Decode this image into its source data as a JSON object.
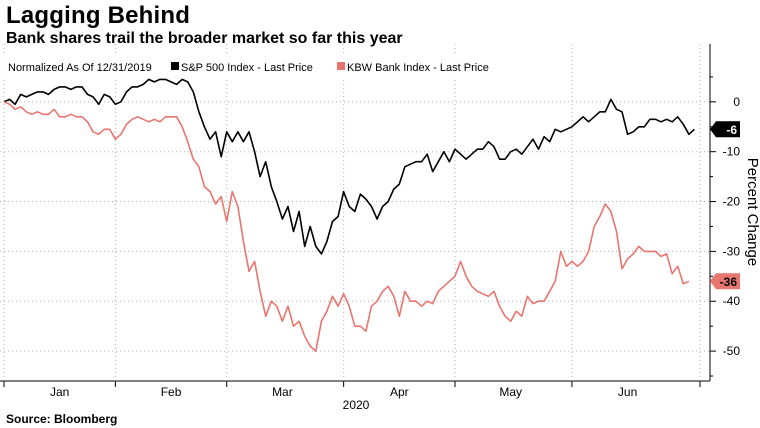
{
  "header": {
    "title": "Lagging Behind",
    "subtitle": "Bank shares trail the broader market so far this year"
  },
  "footer": {
    "source": "Source: Bloomberg"
  },
  "legend": {
    "note": "Normalized As Of 12/31/2019",
    "items": [
      {
        "label": "S&P 500 Index - Last Price",
        "color": "#000000"
      },
      {
        "label": "KBW Bank Index - Last Price",
        "color": "#e8756e"
      }
    ]
  },
  "chart_data": {
    "type": "line",
    "ylabel": "Percent Change",
    "xlabel": "2020",
    "ylim": [
      -56,
      10
    ],
    "yticks": [
      0,
      -10,
      -20,
      -30,
      -40,
      -50
    ],
    "xlim": [
      0,
      125
    ],
    "month_labels": [
      {
        "label": "Jan",
        "x": 10
      },
      {
        "label": "Feb",
        "x": 30
      },
      {
        "label": "Mar",
        "x": 50
      },
      {
        "label": "Apr",
        "x": 71
      },
      {
        "label": "May",
        "x": 91
      },
      {
        "label": "Jun",
        "x": 112
      }
    ],
    "month_boundaries": [
      0,
      20,
      40,
      61,
      81,
      102,
      125
    ],
    "grid": true,
    "legend_position": "top-left",
    "series": [
      {
        "name": "S&P 500 Index - Last Price",
        "color": "#000000",
        "last_label": "-6",
        "points": [
          [
            0,
            0
          ],
          [
            1,
            0.5
          ],
          [
            2,
            -0.5
          ],
          [
            3,
            1.5
          ],
          [
            4,
            1
          ],
          [
            5,
            1.5
          ],
          [
            6,
            2
          ],
          [
            7,
            2
          ],
          [
            8,
            1.5
          ],
          [
            9,
            2.5
          ],
          [
            10,
            3
          ],
          [
            11,
            3
          ],
          [
            12,
            2.5
          ],
          [
            13,
            3
          ],
          [
            14,
            3
          ],
          [
            15,
            1.5
          ],
          [
            16,
            1
          ],
          [
            17,
            -0.5
          ],
          [
            18,
            1.5
          ],
          [
            19,
            1
          ],
          [
            20,
            -0.5
          ],
          [
            21,
            0
          ],
          [
            22,
            2
          ],
          [
            23,
            3
          ],
          [
            24,
            3
          ],
          [
            25,
            3.5
          ],
          [
            26,
            4.5
          ],
          [
            27,
            4
          ],
          [
            28,
            4.5
          ],
          [
            29,
            4.5
          ],
          [
            30,
            4
          ],
          [
            31,
            3.5
          ],
          [
            32,
            4.5
          ],
          [
            33,
            4
          ],
          [
            34,
            2
          ],
          [
            35,
            -2
          ],
          [
            36,
            -5
          ],
          [
            37,
            -7.5
          ],
          [
            38,
            -6
          ],
          [
            39,
            -11
          ],
          [
            40,
            -6
          ],
          [
            41,
            -8
          ],
          [
            42,
            -6
          ],
          [
            43,
            -8
          ],
          [
            44,
            -6
          ],
          [
            45,
            -10
          ],
          [
            46,
            -15
          ],
          [
            47,
            -12
          ],
          [
            48,
            -17
          ],
          [
            49,
            -20
          ],
          [
            50,
            -23.5
          ],
          [
            51,
            -21
          ],
          [
            52,
            -26
          ],
          [
            53,
            -22
          ],
          [
            54,
            -29
          ],
          [
            55,
            -25
          ],
          [
            56,
            -29
          ],
          [
            57,
            -30.5
          ],
          [
            58,
            -28
          ],
          [
            59,
            -24
          ],
          [
            60,
            -23
          ],
          [
            61,
            -18
          ],
          [
            62,
            -21
          ],
          [
            63,
            -22
          ],
          [
            64,
            -18.5
          ],
          [
            65,
            -19.5
          ],
          [
            66,
            -21
          ],
          [
            67,
            -23.5
          ],
          [
            68,
            -21
          ],
          [
            69,
            -20
          ],
          [
            70,
            -17.5
          ],
          [
            71,
            -16.5
          ],
          [
            72,
            -13
          ],
          [
            73,
            -12.5
          ],
          [
            74,
            -12
          ],
          [
            75,
            -12
          ],
          [
            76,
            -10.5
          ],
          [
            77,
            -14
          ],
          [
            78,
            -12
          ],
          [
            79,
            -10
          ],
          [
            80,
            -12
          ],
          [
            81,
            -9.5
          ],
          [
            82,
            -10.5
          ],
          [
            83,
            -11.5
          ],
          [
            84,
            -10.5
          ],
          [
            85,
            -9.5
          ],
          [
            86,
            -9.5
          ],
          [
            87,
            -8
          ],
          [
            88,
            -9
          ],
          [
            89,
            -11.5
          ],
          [
            90,
            -11.5
          ],
          [
            91,
            -10
          ],
          [
            92,
            -9.5
          ],
          [
            93,
            -10.5
          ],
          [
            94,
            -9
          ],
          [
            95,
            -7.5
          ],
          [
            96,
            -9.5
          ],
          [
            97,
            -7
          ],
          [
            98,
            -8
          ],
          [
            99,
            -5.5
          ],
          [
            100,
            -6
          ],
          [
            101,
            -5.5
          ],
          [
            102,
            -5
          ],
          [
            103,
            -4
          ],
          [
            104,
            -3
          ],
          [
            105,
            -4
          ],
          [
            106,
            -3
          ],
          [
            107,
            -2
          ],
          [
            108,
            -2
          ],
          [
            109,
            0.5
          ],
          [
            110,
            -1.5
          ],
          [
            111,
            -2
          ],
          [
            112,
            -6.5
          ],
          [
            113,
            -6
          ],
          [
            114,
            -5
          ],
          [
            115,
            -5
          ],
          [
            116,
            -3.5
          ],
          [
            117,
            -3.5
          ],
          [
            118,
            -4
          ],
          [
            119,
            -3.5
          ],
          [
            120,
            -4
          ],
          [
            121,
            -3
          ],
          [
            122,
            -4.5
          ],
          [
            123,
            -6.5
          ],
          [
            124,
            -5.5
          ]
        ]
      },
      {
        "name": "KBW Bank Index - Last Price",
        "color": "#e8756e",
        "last_label": "-36",
        "points": [
          [
            0,
            0
          ],
          [
            1,
            -0.5
          ],
          [
            2,
            -1.5
          ],
          [
            3,
            -1
          ],
          [
            4,
            -2
          ],
          [
            5,
            -2.5
          ],
          [
            6,
            -2
          ],
          [
            7,
            -2.5
          ],
          [
            8,
            -2.5
          ],
          [
            9,
            -1.5
          ],
          [
            10,
            -3
          ],
          [
            11,
            -3
          ],
          [
            12,
            -2.5
          ],
          [
            13,
            -3
          ],
          [
            14,
            -3
          ],
          [
            15,
            -4
          ],
          [
            16,
            -6
          ],
          [
            17,
            -6.5
          ],
          [
            18,
            -5.5
          ],
          [
            19,
            -5.5
          ],
          [
            20,
            -7.5
          ],
          [
            21,
            -6.5
          ],
          [
            22,
            -4.5
          ],
          [
            23,
            -3.5
          ],
          [
            24,
            -3
          ],
          [
            25,
            -3.5
          ],
          [
            26,
            -4
          ],
          [
            27,
            -3.5
          ],
          [
            28,
            -4
          ],
          [
            29,
            -3
          ],
          [
            30,
            -3
          ],
          [
            31,
            -3
          ],
          [
            32,
            -5
          ],
          [
            33,
            -8
          ],
          [
            34,
            -11.5
          ],
          [
            35,
            -13
          ],
          [
            36,
            -17
          ],
          [
            37,
            -18
          ],
          [
            38,
            -20.5
          ],
          [
            39,
            -19
          ],
          [
            40,
            -24
          ],
          [
            41,
            -18
          ],
          [
            42,
            -21
          ],
          [
            43,
            -28
          ],
          [
            44,
            -34
          ],
          [
            45,
            -32
          ],
          [
            46,
            -38
          ],
          [
            47,
            -43
          ],
          [
            48,
            -40
          ],
          [
            49,
            -41
          ],
          [
            50,
            -44
          ],
          [
            51,
            -41
          ],
          [
            52,
            -45
          ],
          [
            53,
            -44
          ],
          [
            54,
            -47
          ],
          [
            55,
            -49
          ],
          [
            56,
            -50
          ],
          [
            57,
            -44
          ],
          [
            58,
            -42
          ],
          [
            59,
            -39
          ],
          [
            60,
            -41
          ],
          [
            61,
            -38.5
          ],
          [
            62,
            -41
          ],
          [
            63,
            -45
          ],
          [
            64,
            -45
          ],
          [
            65,
            -46
          ],
          [
            66,
            -41
          ],
          [
            67,
            -40
          ],
          [
            68,
            -38
          ],
          [
            69,
            -37
          ],
          [
            70,
            -39
          ],
          [
            71,
            -43
          ],
          [
            72,
            -38
          ],
          [
            73,
            -40
          ],
          [
            74,
            -40
          ],
          [
            75,
            -41
          ],
          [
            76,
            -40
          ],
          [
            77,
            -40.5
          ],
          [
            78,
            -38
          ],
          [
            79,
            -37
          ],
          [
            80,
            -36
          ],
          [
            81,
            -35
          ],
          [
            82,
            -32
          ],
          [
            83,
            -35
          ],
          [
            84,
            -37
          ],
          [
            85,
            -38
          ],
          [
            86,
            -38.5
          ],
          [
            87,
            -39
          ],
          [
            88,
            -38
          ],
          [
            89,
            -41
          ],
          [
            90,
            -43
          ],
          [
            91,
            -44
          ],
          [
            92,
            -42
          ],
          [
            93,
            -43
          ],
          [
            94,
            -39
          ],
          [
            95,
            -40.5
          ],
          [
            96,
            -40
          ],
          [
            97,
            -40
          ],
          [
            98,
            -38
          ],
          [
            99,
            -36
          ],
          [
            100,
            -30
          ],
          [
            101,
            -33
          ],
          [
            102,
            -32
          ],
          [
            103,
            -33
          ],
          [
            104,
            -32
          ],
          [
            105,
            -30
          ],
          [
            106,
            -25
          ],
          [
            107,
            -23
          ],
          [
            108,
            -20.5
          ],
          [
            109,
            -22
          ],
          [
            110,
            -26
          ],
          [
            111,
            -33.5
          ],
          [
            112,
            -31.5
          ],
          [
            113,
            -30.5
          ],
          [
            114,
            -29
          ],
          [
            115,
            -30
          ],
          [
            116,
            -30
          ],
          [
            117,
            -30
          ],
          [
            118,
            -31
          ],
          [
            119,
            -30.5
          ],
          [
            120,
            -34.5
          ],
          [
            121,
            -33
          ],
          [
            122,
            -36.5
          ],
          [
            123,
            -36
          ]
        ]
      }
    ]
  }
}
